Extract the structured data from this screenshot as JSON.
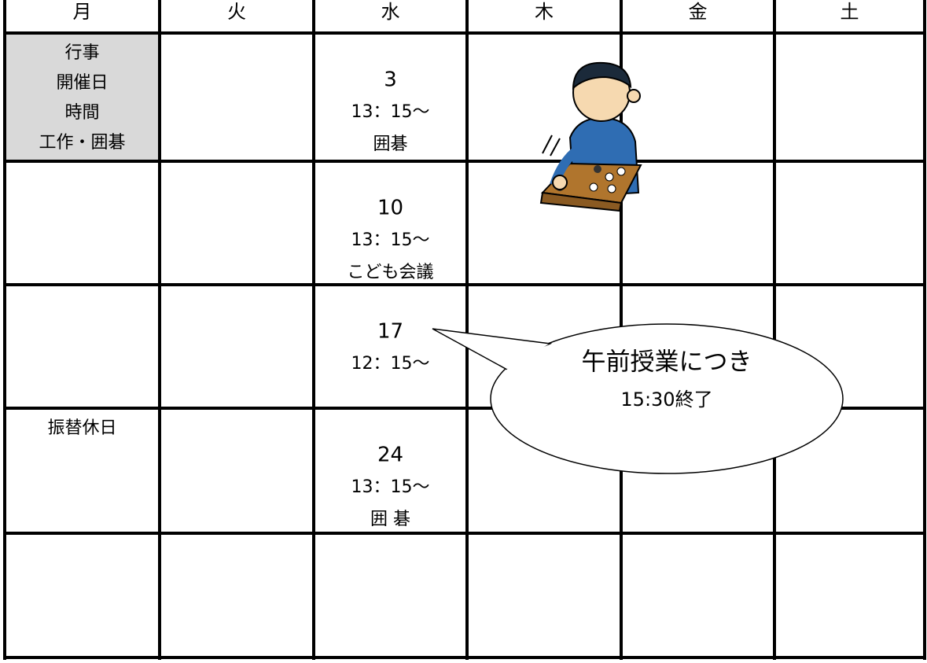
{
  "header": {
    "days": [
      "月",
      "火",
      "水",
      "木",
      "金",
      "土"
    ]
  },
  "weeks": [
    {
      "mon": [
        "行事",
        "開催日",
        "時間",
        "工作・囲碁"
      ],
      "wed": [
        "3",
        "13：15～",
        "囲碁"
      ]
    },
    {
      "wed": [
        "10",
        "13：15～",
        "こども会議"
      ]
    },
    {
      "wed": [
        "17",
        "12：15～"
      ]
    },
    {
      "mon": [
        "振替休日"
      ],
      "wed": [
        "24",
        "13：15～",
        "囲 碁"
      ]
    },
    {}
  ],
  "callout": {
    "lines": [
      "午前授業につき",
      "15:30終了"
    ]
  }
}
